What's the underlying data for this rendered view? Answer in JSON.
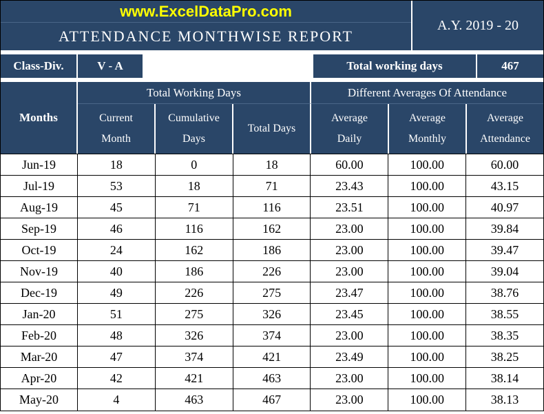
{
  "header": {
    "url": "www.ExcelDataPro.com",
    "title": "ATTENDANCE MONTHWISE REPORT",
    "academic_year": "A.Y. 2019 - 20"
  },
  "meta": {
    "class_div_label": "Class-Div.",
    "class_div_value": "V - A",
    "total_working_days_label": "Total working days",
    "total_working_days_value": "467"
  },
  "columns": {
    "months": "Months",
    "group_twd": "Total Working Days",
    "group_avg": "Different Averages Of Attendance",
    "current_month_l1": "Current",
    "current_month_l2": "Month",
    "cumulative_l1": "Cumulative",
    "cumulative_l2": "Days",
    "total_days": "Total Days",
    "avg_daily_l1": "Average",
    "avg_daily_l2": "Daily",
    "avg_monthly_l1": "Average",
    "avg_monthly_l2": "Monthly",
    "avg_att_l1": "Average",
    "avg_att_l2": "Attendance"
  },
  "rows": [
    {
      "month": "Jun-19",
      "cm": "18",
      "cd": "0",
      "td": "18",
      "ad": "60.00",
      "am": "100.00",
      "aa": "60.00"
    },
    {
      "month": "Jul-19",
      "cm": "53",
      "cd": "18",
      "td": "71",
      "ad": "23.43",
      "am": "100.00",
      "aa": "43.15"
    },
    {
      "month": "Aug-19",
      "cm": "45",
      "cd": "71",
      "td": "116",
      "ad": "23.51",
      "am": "100.00",
      "aa": "40.97"
    },
    {
      "month": "Sep-19",
      "cm": "46",
      "cd": "116",
      "td": "162",
      "ad": "23.00",
      "am": "100.00",
      "aa": "39.84"
    },
    {
      "month": "Oct-19",
      "cm": "24",
      "cd": "162",
      "td": "186",
      "ad": "23.00",
      "am": "100.00",
      "aa": "39.47"
    },
    {
      "month": "Nov-19",
      "cm": "40",
      "cd": "186",
      "td": "226",
      "ad": "23.00",
      "am": "100.00",
      "aa": "39.04"
    },
    {
      "month": "Dec-19",
      "cm": "49",
      "cd": "226",
      "td": "275",
      "ad": "23.47",
      "am": "100.00",
      "aa": "38.76"
    },
    {
      "month": "Jan-20",
      "cm": "51",
      "cd": "275",
      "td": "326",
      "ad": "23.45",
      "am": "100.00",
      "aa": "38.55"
    },
    {
      "month": "Feb-20",
      "cm": "48",
      "cd": "326",
      "td": "374",
      "ad": "23.00",
      "am": "100.00",
      "aa": "38.35"
    },
    {
      "month": "Mar-20",
      "cm": "47",
      "cd": "374",
      "td": "421",
      "ad": "23.49",
      "am": "100.00",
      "aa": "38.25"
    },
    {
      "month": "Apr-20",
      "cm": "42",
      "cd": "421",
      "td": "463",
      "ad": "23.00",
      "am": "100.00",
      "aa": "38.14"
    },
    {
      "month": "May-20",
      "cm": "4",
      "cd": "463",
      "td": "467",
      "ad": "23.00",
      "am": "100.00",
      "aa": "38.13"
    }
  ],
  "style": {
    "header_bg": "#2a4668",
    "header_text": "#ffffff",
    "url_text": "#ffff00",
    "data_bg": "#ffffff",
    "data_text": "#000000",
    "border_color": "#000000",
    "inner_header_border": "#4a6688",
    "title_fontsize": 22,
    "header_fontsize": 17,
    "data_fontsize": 18
  }
}
